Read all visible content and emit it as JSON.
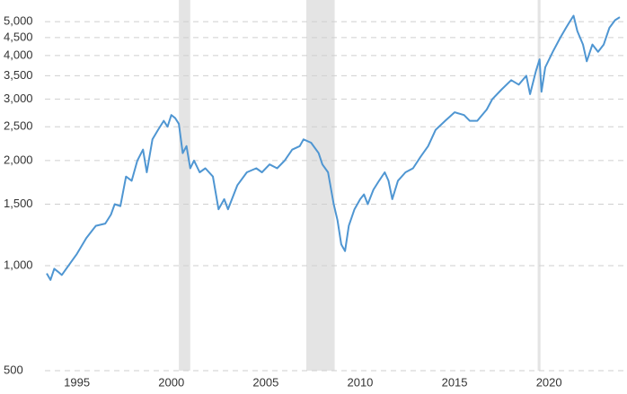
{
  "chart_data": {
    "type": "line",
    "log_scale": true,
    "grid": true,
    "color": "#4f96d2",
    "band_color": "#e4e4e4",
    "xlim": [
      1993.4,
      2023.75
    ],
    "xticks": [
      1995,
      2000,
      2005,
      2010,
      2015,
      2020
    ],
    "ylim": [
      500,
      5600
    ],
    "yticks": [
      {
        "value": 500,
        "label": "500"
      },
      {
        "value": 1000,
        "label": "1,000"
      },
      {
        "value": 1500,
        "label": "1,500"
      },
      {
        "value": 2000,
        "label": "2,000"
      },
      {
        "value": 2500,
        "label": "2,500"
      },
      {
        "value": 3000,
        "label": "3,000"
      },
      {
        "value": 3500,
        "label": "3,500"
      },
      {
        "value": 4000,
        "label": "4,000"
      },
      {
        "value": 4500,
        "label": "4,500"
      },
      {
        "value": 5000,
        "label": "5,000"
      }
    ],
    "recessions": [
      [
        2000.4,
        2001.0
      ],
      [
        2007.15,
        2008.65
      ],
      [
        2019.4,
        2019.55
      ]
    ],
    "x": [
      1993.4,
      1993.6,
      1993.8,
      1994.0,
      1994.2,
      1994.5,
      1995.0,
      1995.5,
      1996.0,
      1996.5,
      1996.8,
      1997.0,
      1997.3,
      1997.6,
      1997.9,
      1998.2,
      1998.5,
      1998.7,
      1999.0,
      1999.3,
      1999.6,
      1999.8,
      2000.0,
      2000.2,
      2000.4,
      2000.6,
      2000.8,
      2001.0,
      2001.2,
      2001.5,
      2001.8,
      2002.2,
      2002.5,
      2002.8,
      2003.0,
      2003.5,
      2004.0,
      2004.5,
      2004.8,
      2005.2,
      2005.6,
      2006.0,
      2006.4,
      2006.8,
      2007.0,
      2007.4,
      2007.8,
      2008.0,
      2008.3,
      2008.6,
      2008.8,
      2009.0,
      2009.2,
      2009.4,
      2009.7,
      2010.0,
      2010.2,
      2010.4,
      2010.7,
      2011.0,
      2011.3,
      2011.5,
      2011.7,
      2012.0,
      2012.4,
      2012.8,
      2013.2,
      2013.6,
      2014.0,
      2014.5,
      2015.0,
      2015.5,
      2015.8,
      2016.2,
      2016.7,
      2017.0,
      2017.5,
      2018.0,
      2018.4,
      2018.8,
      2019.0,
      2019.3,
      2019.5,
      2019.6,
      2019.8,
      2020.2,
      2020.6,
      2020.9,
      2021.1,
      2021.3,
      2021.5,
      2021.8,
      2022.0,
      2022.3,
      2022.6,
      2022.9,
      2023.2,
      2023.5,
      2023.75
    ],
    "values": [
      950,
      910,
      980,
      960,
      940,
      990,
      1080,
      1200,
      1300,
      1320,
      1400,
      1500,
      1480,
      1800,
      1750,
      2000,
      2150,
      1850,
      2300,
      2450,
      2600,
      2500,
      2700,
      2650,
      2550,
      2100,
      2200,
      1900,
      2000,
      1850,
      1900,
      1800,
      1450,
      1550,
      1450,
      1700,
      1850,
      1900,
      1850,
      1950,
      1900,
      2000,
      2150,
      2200,
      2300,
      2250,
      2100,
      1950,
      1850,
      1500,
      1350,
      1150,
      1100,
      1300,
      1450,
      1550,
      1600,
      1500,
      1650,
      1750,
      1850,
      1750,
      1550,
      1750,
      1850,
      1900,
      2050,
      2200,
      2450,
      2600,
      2750,
      2700,
      2600,
      2600,
      2800,
      3000,
      3200,
      3400,
      3300,
      3500,
      3100,
      3600,
      3900,
      3150,
      3700,
      4100,
      4500,
      4800,
      5000,
      5200,
      4700,
      4300,
      3850,
      4300,
      4100,
      4300,
      4800,
      5050,
      5150
    ]
  }
}
